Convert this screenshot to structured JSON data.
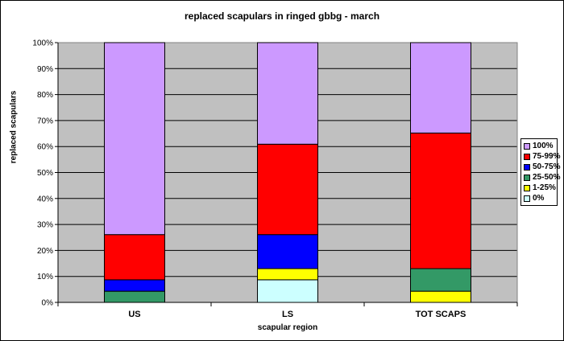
{
  "chart_data": {
    "type": "bar",
    "stacked": true,
    "title": "replaced scapulars in ringed gbbg - march",
    "xlabel": "scapular region",
    "ylabel": "replaced scapulars",
    "categories": [
      "US",
      "LS",
      "TOT SCAPS"
    ],
    "ylim": [
      0,
      100
    ],
    "yticks": [
      "0%",
      "10%",
      "20%",
      "30%",
      "40%",
      "50%",
      "60%",
      "70%",
      "80%",
      "90%",
      "100%"
    ],
    "grid": true,
    "legend_position": "right",
    "series": [
      {
        "name": "0%",
        "color": "#ccffff",
        "values": [
          0,
          8.7,
          0
        ]
      },
      {
        "name": "1-25%",
        "color": "#ffff00",
        "values": [
          0,
          4.3,
          4.3
        ]
      },
      {
        "name": "25-50%",
        "color": "#339966",
        "values": [
          4.3,
          0,
          8.7
        ]
      },
      {
        "name": "50-75%",
        "color": "#0000ff",
        "values": [
          4.4,
          13.1,
          0
        ]
      },
      {
        "name": "75-99%",
        "color": "#ff0000",
        "values": [
          17.4,
          34.8,
          52.2
        ]
      },
      {
        "name": "100%",
        "color": "#cc99ff",
        "values": [
          73.9,
          39.1,
          34.8
        ]
      }
    ],
    "legend_order": [
      "100%",
      "75-99%",
      "50-75%",
      "25-50%",
      "1-25%",
      "0%"
    ]
  }
}
